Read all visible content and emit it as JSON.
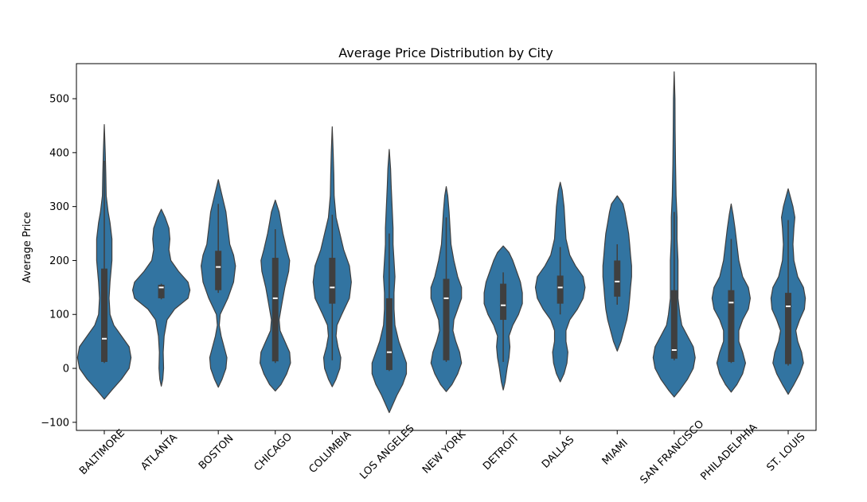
{
  "chart_data": {
    "type": "violin",
    "title": "Average Price Distribution by City",
    "xlabel": "",
    "ylabel": "Average Price",
    "ylim": [
      -115,
      565
    ],
    "yticks": [
      -100,
      0,
      100,
      200,
      300,
      400,
      500
    ],
    "grid": false,
    "legend": "none",
    "categories": [
      "BALTIMORE",
      "ATLANTA",
      "BOSTON",
      "CHICAGO",
      "COLUMBIA",
      "LOS ANGELES",
      "NEW YORK",
      "DETROIT",
      "DALLAS",
      "MIAMI",
      "SAN FRANCISCO",
      "PHILADELPHIA",
      "ST. LOUIS"
    ],
    "colors": {
      "violin": "#3274a1",
      "edge": "#3f3f3f",
      "box": "#3f3f3f",
      "median": "#ffffff"
    },
    "violins": [
      {
        "name": "BALTIMORE",
        "min": -57,
        "max": 452,
        "q1": 12,
        "median": 55,
        "q3": 185,
        "whisker_low": 10,
        "whisker_high": 385,
        "profile": [
          [
            -57,
            0
          ],
          [
            -40,
            4
          ],
          [
            -20,
            9
          ],
          [
            0,
            13
          ],
          [
            20,
            14
          ],
          [
            40,
            13
          ],
          [
            60,
            9
          ],
          [
            80,
            5
          ],
          [
            100,
            3
          ],
          [
            130,
            2.5
          ],
          [
            160,
            3
          ],
          [
            200,
            4
          ],
          [
            240,
            4
          ],
          [
            270,
            3
          ],
          [
            290,
            2
          ],
          [
            320,
            1
          ],
          [
            360,
            0.8
          ],
          [
            400,
            0.5
          ],
          [
            452,
            0
          ]
        ]
      },
      {
        "name": "ATLANTA",
        "min": -33,
        "max": 295,
        "q1": 130,
        "median": 150,
        "q3": 155,
        "whisker_low": 128,
        "whisker_high": 157,
        "profile": [
          [
            -33,
            0
          ],
          [
            -20,
            0.8
          ],
          [
            0,
            1.2
          ],
          [
            30,
            1
          ],
          [
            60,
            1.5
          ],
          [
            90,
            3
          ],
          [
            110,
            7
          ],
          [
            130,
            14
          ],
          [
            145,
            15
          ],
          [
            160,
            14
          ],
          [
            180,
            9
          ],
          [
            200,
            5
          ],
          [
            220,
            4
          ],
          [
            240,
            4.5
          ],
          [
            260,
            4
          ],
          [
            280,
            2
          ],
          [
            295,
            0
          ]
        ]
      },
      {
        "name": "BOSTON",
        "min": -35,
        "max": 350,
        "q1": 145,
        "median": 188,
        "q3": 218,
        "whisker_low": 140,
        "whisker_high": 305,
        "profile": [
          [
            -35,
            0
          ],
          [
            -20,
            2
          ],
          [
            0,
            4
          ],
          [
            20,
            4.5
          ],
          [
            40,
            3
          ],
          [
            60,
            1.5
          ],
          [
            80,
            0.5
          ],
          [
            100,
            1
          ],
          [
            130,
            5
          ],
          [
            160,
            8
          ],
          [
            190,
            9
          ],
          [
            210,
            8
          ],
          [
            230,
            6
          ],
          [
            260,
            5
          ],
          [
            290,
            4
          ],
          [
            320,
            2
          ],
          [
            350,
            0
          ]
        ]
      },
      {
        "name": "CHICAGO",
        "min": -42,
        "max": 312,
        "q1": 13,
        "median": 130,
        "q3": 205,
        "whisker_low": 10,
        "whisker_high": 258,
        "profile": [
          [
            -42,
            0
          ],
          [
            -30,
            3
          ],
          [
            -10,
            6
          ],
          [
            10,
            8
          ],
          [
            30,
            7.5
          ],
          [
            50,
            5
          ],
          [
            70,
            2.5
          ],
          [
            90,
            2
          ],
          [
            120,
            3.5
          ],
          [
            150,
            5
          ],
          [
            180,
            7
          ],
          [
            200,
            7.5
          ],
          [
            220,
            6
          ],
          [
            250,
            4
          ],
          [
            270,
            3
          ],
          [
            290,
            2
          ],
          [
            312,
            0
          ]
        ]
      },
      {
        "name": "COLUMBIA",
        "min": -34,
        "max": 448,
        "q1": 120,
        "median": 150,
        "q3": 205,
        "whisker_low": 15,
        "whisker_high": 285,
        "profile": [
          [
            -34,
            0
          ],
          [
            -20,
            2
          ],
          [
            0,
            4
          ],
          [
            20,
            4.5
          ],
          [
            40,
            3
          ],
          [
            60,
            2
          ],
          [
            80,
            2.5
          ],
          [
            100,
            5
          ],
          [
            130,
            9
          ],
          [
            160,
            10
          ],
          [
            190,
            9
          ],
          [
            220,
            6
          ],
          [
            250,
            4
          ],
          [
            280,
            2
          ],
          [
            320,
            1
          ],
          [
            360,
            0.8
          ],
          [
            400,
            0.5
          ],
          [
            448,
            0
          ]
        ]
      },
      {
        "name": "LOS ANGELES",
        "min": -82,
        "max": 406,
        "q1": -3,
        "median": 30,
        "q3": 130,
        "whisker_low": -5,
        "whisker_high": 250,
        "profile": [
          [
            -82,
            0
          ],
          [
            -70,
            1.5
          ],
          [
            -50,
            4
          ],
          [
            -30,
            7
          ],
          [
            -10,
            9
          ],
          [
            10,
            9
          ],
          [
            30,
            7
          ],
          [
            50,
            5
          ],
          [
            80,
            3
          ],
          [
            110,
            2.5
          ],
          [
            140,
            2.5
          ],
          [
            170,
            3
          ],
          [
            200,
            2.5
          ],
          [
            230,
            2
          ],
          [
            260,
            2
          ],
          [
            300,
            1.5
          ],
          [
            340,
            1
          ],
          [
            370,
            0.7
          ],
          [
            406,
            0
          ]
        ]
      },
      {
        "name": "NEW YORK",
        "min": -43,
        "max": 337,
        "q1": 15,
        "median": 130,
        "q3": 166,
        "whisker_low": 12,
        "whisker_high": 280,
        "profile": [
          [
            -43,
            0
          ],
          [
            -30,
            3
          ],
          [
            -10,
            6
          ],
          [
            10,
            8
          ],
          [
            30,
            7
          ],
          [
            50,
            5
          ],
          [
            70,
            3.5
          ],
          [
            90,
            4
          ],
          [
            110,
            6
          ],
          [
            130,
            8
          ],
          [
            150,
            8
          ],
          [
            170,
            6
          ],
          [
            200,
            4
          ],
          [
            230,
            2.5
          ],
          [
            260,
            2
          ],
          [
            290,
            1.5
          ],
          [
            320,
            0.8
          ],
          [
            337,
            0
          ]
        ]
      },
      {
        "name": "DETROIT",
        "min": -40,
        "max": 227,
        "q1": 90,
        "median": 117,
        "q3": 157,
        "whisker_low": 12,
        "whisker_high": 178,
        "profile": [
          [
            -40,
            0
          ],
          [
            -25,
            1
          ],
          [
            0,
            2
          ],
          [
            20,
            3
          ],
          [
            40,
            3.5
          ],
          [
            60,
            3
          ],
          [
            80,
            5
          ],
          [
            100,
            8
          ],
          [
            120,
            10
          ],
          [
            140,
            10
          ],
          [
            160,
            9
          ],
          [
            180,
            7
          ],
          [
            200,
            5
          ],
          [
            215,
            3
          ],
          [
            227,
            0
          ]
        ]
      },
      {
        "name": "DALLAS",
        "min": -25,
        "max": 345,
        "q1": 120,
        "median": 150,
        "q3": 172,
        "whisker_low": 100,
        "whisker_high": 225,
        "profile": [
          [
            -25,
            0
          ],
          [
            -10,
            2
          ],
          [
            10,
            3.5
          ],
          [
            30,
            4
          ],
          [
            50,
            3
          ],
          [
            70,
            3
          ],
          [
            90,
            5
          ],
          [
            110,
            9
          ],
          [
            130,
            12
          ],
          [
            150,
            13
          ],
          [
            170,
            12
          ],
          [
            190,
            8
          ],
          [
            210,
            5
          ],
          [
            240,
            3
          ],
          [
            270,
            2.5
          ],
          [
            300,
            2
          ],
          [
            330,
            1
          ],
          [
            345,
            0
          ]
        ]
      },
      {
        "name": "MIAMI",
        "min": 32,
        "max": 320,
        "q1": 133,
        "median": 161,
        "q3": 200,
        "whisker_low": 118,
        "whisker_high": 230,
        "profile": [
          [
            32,
            0
          ],
          [
            50,
            2
          ],
          [
            70,
            3.5
          ],
          [
            90,
            5
          ],
          [
            110,
            6
          ],
          [
            130,
            6.5
          ],
          [
            150,
            7
          ],
          [
            170,
            7.5
          ],
          [
            190,
            7.5
          ],
          [
            210,
            7
          ],
          [
            230,
            6.5
          ],
          [
            250,
            6
          ],
          [
            270,
            5
          ],
          [
            290,
            4
          ],
          [
            305,
            3
          ],
          [
            320,
            0
          ]
        ]
      },
      {
        "name": "SAN FRANCISCO",
        "min": -53,
        "max": 550,
        "q1": 18,
        "median": 34,
        "q3": 145,
        "whisker_low": 15,
        "whisker_high": 290,
        "profile": [
          [
            -53,
            0
          ],
          [
            -40,
            3
          ],
          [
            -20,
            7
          ],
          [
            0,
            10
          ],
          [
            20,
            11
          ],
          [
            40,
            10
          ],
          [
            60,
            7
          ],
          [
            80,
            4
          ],
          [
            100,
            3
          ],
          [
            130,
            2
          ],
          [
            160,
            2
          ],
          [
            200,
            2
          ],
          [
            240,
            1.5
          ],
          [
            280,
            1.5
          ],
          [
            320,
            1
          ],
          [
            380,
            0.7
          ],
          [
            440,
            0.5
          ],
          [
            500,
            0.4
          ],
          [
            550,
            0
          ]
        ]
      },
      {
        "name": "PHILADELPHIA",
        "min": -44,
        "max": 305,
        "q1": 12,
        "median": 122,
        "q3": 145,
        "whisker_low": 10,
        "whisker_high": 240,
        "profile": [
          [
            -44,
            0
          ],
          [
            -30,
            3
          ],
          [
            -10,
            6
          ],
          [
            10,
            7.5
          ],
          [
            30,
            6
          ],
          [
            50,
            4
          ],
          [
            70,
            4
          ],
          [
            90,
            6
          ],
          [
            110,
            9
          ],
          [
            130,
            10
          ],
          [
            150,
            9
          ],
          [
            170,
            6
          ],
          [
            200,
            4
          ],
          [
            230,
            3
          ],
          [
            260,
            2
          ],
          [
            285,
            1
          ],
          [
            305,
            0
          ]
        ]
      },
      {
        "name": "ST. LOUIS",
        "min": -48,
        "max": 333,
        "q1": 8,
        "median": 115,
        "q3": 140,
        "whisker_low": 5,
        "whisker_high": 275,
        "profile": [
          [
            -48,
            0
          ],
          [
            -30,
            3
          ],
          [
            -10,
            6
          ],
          [
            10,
            8
          ],
          [
            30,
            7
          ],
          [
            50,
            5
          ],
          [
            70,
            4
          ],
          [
            90,
            6
          ],
          [
            110,
            8.5
          ],
          [
            130,
            9
          ],
          [
            150,
            8
          ],
          [
            170,
            5
          ],
          [
            200,
            3
          ],
          [
            230,
            2.5
          ],
          [
            260,
            3
          ],
          [
            280,
            3.5
          ],
          [
            300,
            2.5
          ],
          [
            320,
            1
          ],
          [
            333,
            0
          ]
        ]
      }
    ]
  }
}
